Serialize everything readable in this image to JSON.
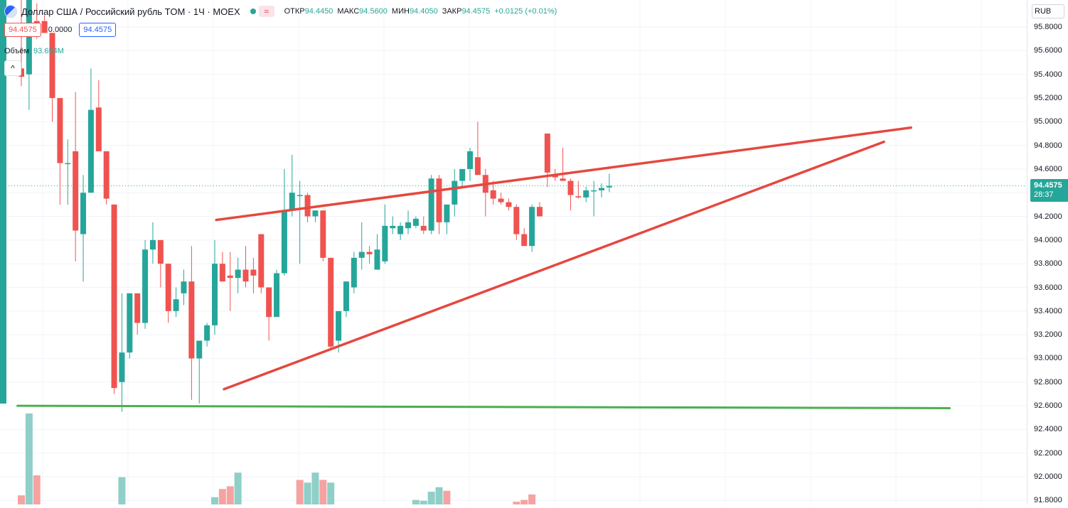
{
  "legend": {
    "symbol": "Доллар США / Российский рубль TOM · 1Ч · MOEX",
    "logo_icon": "currency-pair-logo-icon",
    "status_icon": "market-open-dot-icon",
    "wave_icon": "wave-icon",
    "wave_glyph": "≈",
    "ohlc": {
      "open_key": "ОТКР",
      "open": "94.4450",
      "high_key": "МАКС",
      "high": "94.5600",
      "low_key": "МИН",
      "low": "94.4050",
      "close_key": "ЗАКР",
      "close": "94.4575",
      "change": "+0.0125 (+0.01%)"
    }
  },
  "prices": {
    "bid": "94.4575",
    "spread": "0.0000",
    "ask": "94.4575"
  },
  "volume": {
    "label": "Объём",
    "value": "93.654M"
  },
  "collapse_glyph": "^",
  "price_axis": {
    "currency": "RUB",
    "last_price": "94.4575",
    "countdown": "28:37"
  },
  "colors": {
    "up": "#26a69a",
    "down": "#ef5350",
    "trendline": "#e5483f",
    "support": "#4caf50",
    "grid": "#f0f3fa"
  },
  "chart_data": {
    "type": "candlestick",
    "interval": "1Ч",
    "ylim": [
      91.78,
      95.92
    ],
    "yticks": [
      "95.8000",
      "95.6000",
      "95.4000",
      "95.2000",
      "95.0000",
      "94.8000",
      "94.6000",
      "94.4000",
      "94.2000",
      "94.0000",
      "93.8000",
      "93.6000",
      "93.4000",
      "93.2000",
      "93.0000",
      "92.8000",
      "92.6000",
      "92.4000",
      "92.2000",
      "92.0000",
      "91.8000"
    ],
    "candles": [
      {
        "o": 95.45,
        "h": 96.3,
        "l": 95.3,
        "c": 95.38
      },
      {
        "o": 95.4,
        "h": 96.3,
        "l": 95.1,
        "c": 96.2
      },
      {
        "o": 95.85,
        "h": 96.0,
        "l": 95.7,
        "c": 95.8
      },
      {
        "o": 95.85,
        "h": 95.9,
        "l": 95.75,
        "c": 95.75
      },
      {
        "o": 95.75,
        "h": 95.75,
        "l": 95.0,
        "c": 95.2
      },
      {
        "o": 95.2,
        "h": 95.2,
        "l": 94.3,
        "c": 94.65
      },
      {
        "o": 94.65,
        "h": 94.85,
        "l": 94.3,
        "c": 94.65
      },
      {
        "o": 94.75,
        "h": 95.25,
        "l": 93.82,
        "c": 94.08
      },
      {
        "o": 94.05,
        "h": 94.55,
        "l": 93.65,
        "c": 94.4
      },
      {
        "o": 94.4,
        "h": 95.45,
        "l": 94.4,
        "c": 95.1
      },
      {
        "o": 95.12,
        "h": 95.35,
        "l": 94.75,
        "c": 94.75
      },
      {
        "o": 94.75,
        "h": 94.75,
        "l": 94.3,
        "c": 94.35
      },
      {
        "o": 94.3,
        "h": 94.3,
        "l": 92.7,
        "c": 92.75
      },
      {
        "o": 92.8,
        "h": 93.55,
        "l": 92.55,
        "c": 93.05
      },
      {
        "o": 93.05,
        "h": 93.55,
        "l": 93.0,
        "c": 93.55
      },
      {
        "o": 93.55,
        "h": 93.55,
        "l": 93.2,
        "c": 93.3
      },
      {
        "o": 93.3,
        "h": 94.0,
        "l": 93.25,
        "c": 93.92
      },
      {
        "o": 93.92,
        "h": 94.15,
        "l": 93.8,
        "c": 94.0
      },
      {
        "o": 94.0,
        "h": 94.0,
        "l": 93.6,
        "c": 93.8
      },
      {
        "o": 93.8,
        "h": 93.8,
        "l": 93.3,
        "c": 93.4
      },
      {
        "o": 93.4,
        "h": 93.6,
        "l": 93.35,
        "c": 93.5
      },
      {
        "o": 93.55,
        "h": 93.75,
        "l": 93.45,
        "c": 93.65
      },
      {
        "o": 93.65,
        "h": 93.95,
        "l": 92.65,
        "c": 93.0
      },
      {
        "o": 93.0,
        "h": 93.15,
        "l": 92.62,
        "c": 93.15
      },
      {
        "o": 93.15,
        "h": 93.3,
        "l": 93.1,
        "c": 93.28
      },
      {
        "o": 93.28,
        "h": 94.0,
        "l": 93.2,
        "c": 93.8
      },
      {
        "o": 93.8,
        "h": 93.9,
        "l": 93.65,
        "c": 93.65
      },
      {
        "o": 93.7,
        "h": 93.9,
        "l": 93.4,
        "c": 93.68
      },
      {
        "o": 93.68,
        "h": 93.85,
        "l": 93.55,
        "c": 93.75
      },
      {
        "o": 93.75,
        "h": 93.95,
        "l": 93.6,
        "c": 93.65
      },
      {
        "o": 93.75,
        "h": 93.85,
        "l": 93.55,
        "c": 93.7
      },
      {
        "o": 94.05,
        "h": 94.05,
        "l": 93.55,
        "c": 93.6
      },
      {
        "o": 93.6,
        "h": 93.6,
        "l": 93.15,
        "c": 93.35
      },
      {
        "o": 93.35,
        "h": 93.75,
        "l": 93.35,
        "c": 93.72
      },
      {
        "o": 93.72,
        "h": 94.6,
        "l": 93.7,
        "c": 94.25
      },
      {
        "o": 94.25,
        "h": 94.72,
        "l": 94.2,
        "c": 94.4
      },
      {
        "o": 94.38,
        "h": 94.5,
        "l": 93.8,
        "c": 94.38
      },
      {
        "o": 94.38,
        "h": 94.4,
        "l": 94.15,
        "c": 94.2
      },
      {
        "o": 94.2,
        "h": 94.25,
        "l": 94.15,
        "c": 94.25
      },
      {
        "o": 94.25,
        "h": 94.25,
        "l": 93.82,
        "c": 93.85
      },
      {
        "o": 93.85,
        "h": 93.85,
        "l": 93.08,
        "c": 93.1
      },
      {
        "o": 93.15,
        "h": 93.4,
        "l": 93.05,
        "c": 93.4
      },
      {
        "o": 93.4,
        "h": 93.65,
        "l": 93.35,
        "c": 93.65
      },
      {
        "o": 93.6,
        "h": 93.9,
        "l": 93.55,
        "c": 93.85
      },
      {
        "o": 93.85,
        "h": 94.15,
        "l": 93.75,
        "c": 93.9
      },
      {
        "o": 93.9,
        "h": 93.95,
        "l": 93.8,
        "c": 93.88
      },
      {
        "o": 93.75,
        "h": 94.05,
        "l": 93.75,
        "c": 93.92
      },
      {
        "o": 93.82,
        "h": 94.3,
        "l": 93.8,
        "c": 94.12
      },
      {
        "o": 94.1,
        "h": 94.2,
        "l": 94.05,
        "c": 94.12
      },
      {
        "o": 94.05,
        "h": 94.15,
        "l": 94.0,
        "c": 94.12
      },
      {
        "o": 94.1,
        "h": 94.25,
        "l": 94.05,
        "c": 94.15
      },
      {
        "o": 94.12,
        "h": 94.2,
        "l": 94.1,
        "c": 94.18
      },
      {
        "o": 94.12,
        "h": 94.2,
        "l": 94.05,
        "c": 94.08
      },
      {
        "o": 94.08,
        "h": 94.55,
        "l": 94.05,
        "c": 94.52
      },
      {
        "o": 94.52,
        "h": 94.55,
        "l": 94.05,
        "c": 94.15
      },
      {
        "o": 94.15,
        "h": 94.3,
        "l": 94.05,
        "c": 94.3
      },
      {
        "o": 94.3,
        "h": 94.6,
        "l": 94.2,
        "c": 94.5
      },
      {
        "o": 94.5,
        "h": 94.6,
        "l": 94.45,
        "c": 94.6
      },
      {
        "o": 94.6,
        "h": 94.78,
        "l": 94.5,
        "c": 94.75
      },
      {
        "o": 94.7,
        "h": 95.0,
        "l": 94.55,
        "c": 94.55
      },
      {
        "o": 94.55,
        "h": 94.6,
        "l": 94.2,
        "c": 94.4
      },
      {
        "o": 94.42,
        "h": 94.5,
        "l": 94.3,
        "c": 94.35
      },
      {
        "o": 94.35,
        "h": 94.4,
        "l": 94.3,
        "c": 94.32
      },
      {
        "o": 94.32,
        "h": 94.35,
        "l": 94.25,
        "c": 94.28
      },
      {
        "o": 94.28,
        "h": 94.3,
        "l": 94.0,
        "c": 94.05
      },
      {
        "o": 94.05,
        "h": 94.1,
        "l": 93.95,
        "c": 93.95
      },
      {
        "o": 93.95,
        "h": 94.3,
        "l": 93.9,
        "c": 94.28
      },
      {
        "o": 94.28,
        "h": 94.32,
        "l": 94.2,
        "c": 94.2
      },
      {
        "o": 94.9,
        "h": 94.9,
        "l": 94.45,
        "c": 94.57
      },
      {
        "o": 94.55,
        "h": 94.6,
        "l": 94.5,
        "c": 94.53
      },
      {
        "o": 94.52,
        "h": 94.78,
        "l": 94.5,
        "c": 94.5
      },
      {
        "o": 94.5,
        "h": 94.52,
        "l": 94.25,
        "c": 94.38
      },
      {
        "o": 94.37,
        "h": 94.5,
        "l": 94.35,
        "c": 94.36
      },
      {
        "o": 94.36,
        "h": 94.45,
        "l": 94.32,
        "c": 94.42
      },
      {
        "o": 94.42,
        "h": 94.5,
        "l": 94.2,
        "c": 94.42
      },
      {
        "o": 94.42,
        "h": 94.48,
        "l": 94.36,
        "c": 94.44
      },
      {
        "o": 94.445,
        "h": 94.56,
        "l": 94.405,
        "c": 94.4575
      }
    ],
    "volume": {
      "ymax": 100,
      "bars": [
        {
          "i": 0,
          "v": 10,
          "up": false
        },
        {
          "i": 1,
          "v": 100,
          "up": true
        },
        {
          "i": 2,
          "v": 32,
          "up": false
        },
        {
          "i": 13,
          "v": 30,
          "up": true
        },
        {
          "i": 25,
          "v": 8,
          "up": true
        },
        {
          "i": 26,
          "v": 17,
          "up": false
        },
        {
          "i": 27,
          "v": 20,
          "up": false
        },
        {
          "i": 28,
          "v": 35,
          "up": true
        },
        {
          "i": 36,
          "v": 27,
          "up": false
        },
        {
          "i": 37,
          "v": 24,
          "up": true
        },
        {
          "i": 38,
          "v": 35,
          "up": true
        },
        {
          "i": 39,
          "v": 27,
          "up": false
        },
        {
          "i": 40,
          "v": 24,
          "up": true
        },
        {
          "i": 51,
          "v": 5,
          "up": true
        },
        {
          "i": 52,
          "v": 4,
          "up": true
        },
        {
          "i": 53,
          "v": 14,
          "up": true
        },
        {
          "i": 54,
          "v": 19,
          "up": true
        },
        {
          "i": 55,
          "v": 15,
          "up": false
        },
        {
          "i": 64,
          "v": 3,
          "up": false
        },
        {
          "i": 65,
          "v": 5,
          "up": false
        },
        {
          "i": 66,
          "v": 11,
          "up": false
        }
      ]
    },
    "trendlines": [
      {
        "name": "upper-resistance",
        "from": {
          "i": 25.2,
          "p": 94.17
        },
        "to": {
          "i": 115.0,
          "p": 94.95
        }
      },
      {
        "name": "lower-support-rising",
        "from": {
          "i": 26.2,
          "p": 92.74
        },
        "to": {
          "i": 111.5,
          "p": 94.83
        }
      },
      {
        "name": "horizontal-support",
        "from": {
          "i": -0.5,
          "p": 92.6
        },
        "to": {
          "i": 120.0,
          "p": 92.58
        }
      }
    ]
  }
}
